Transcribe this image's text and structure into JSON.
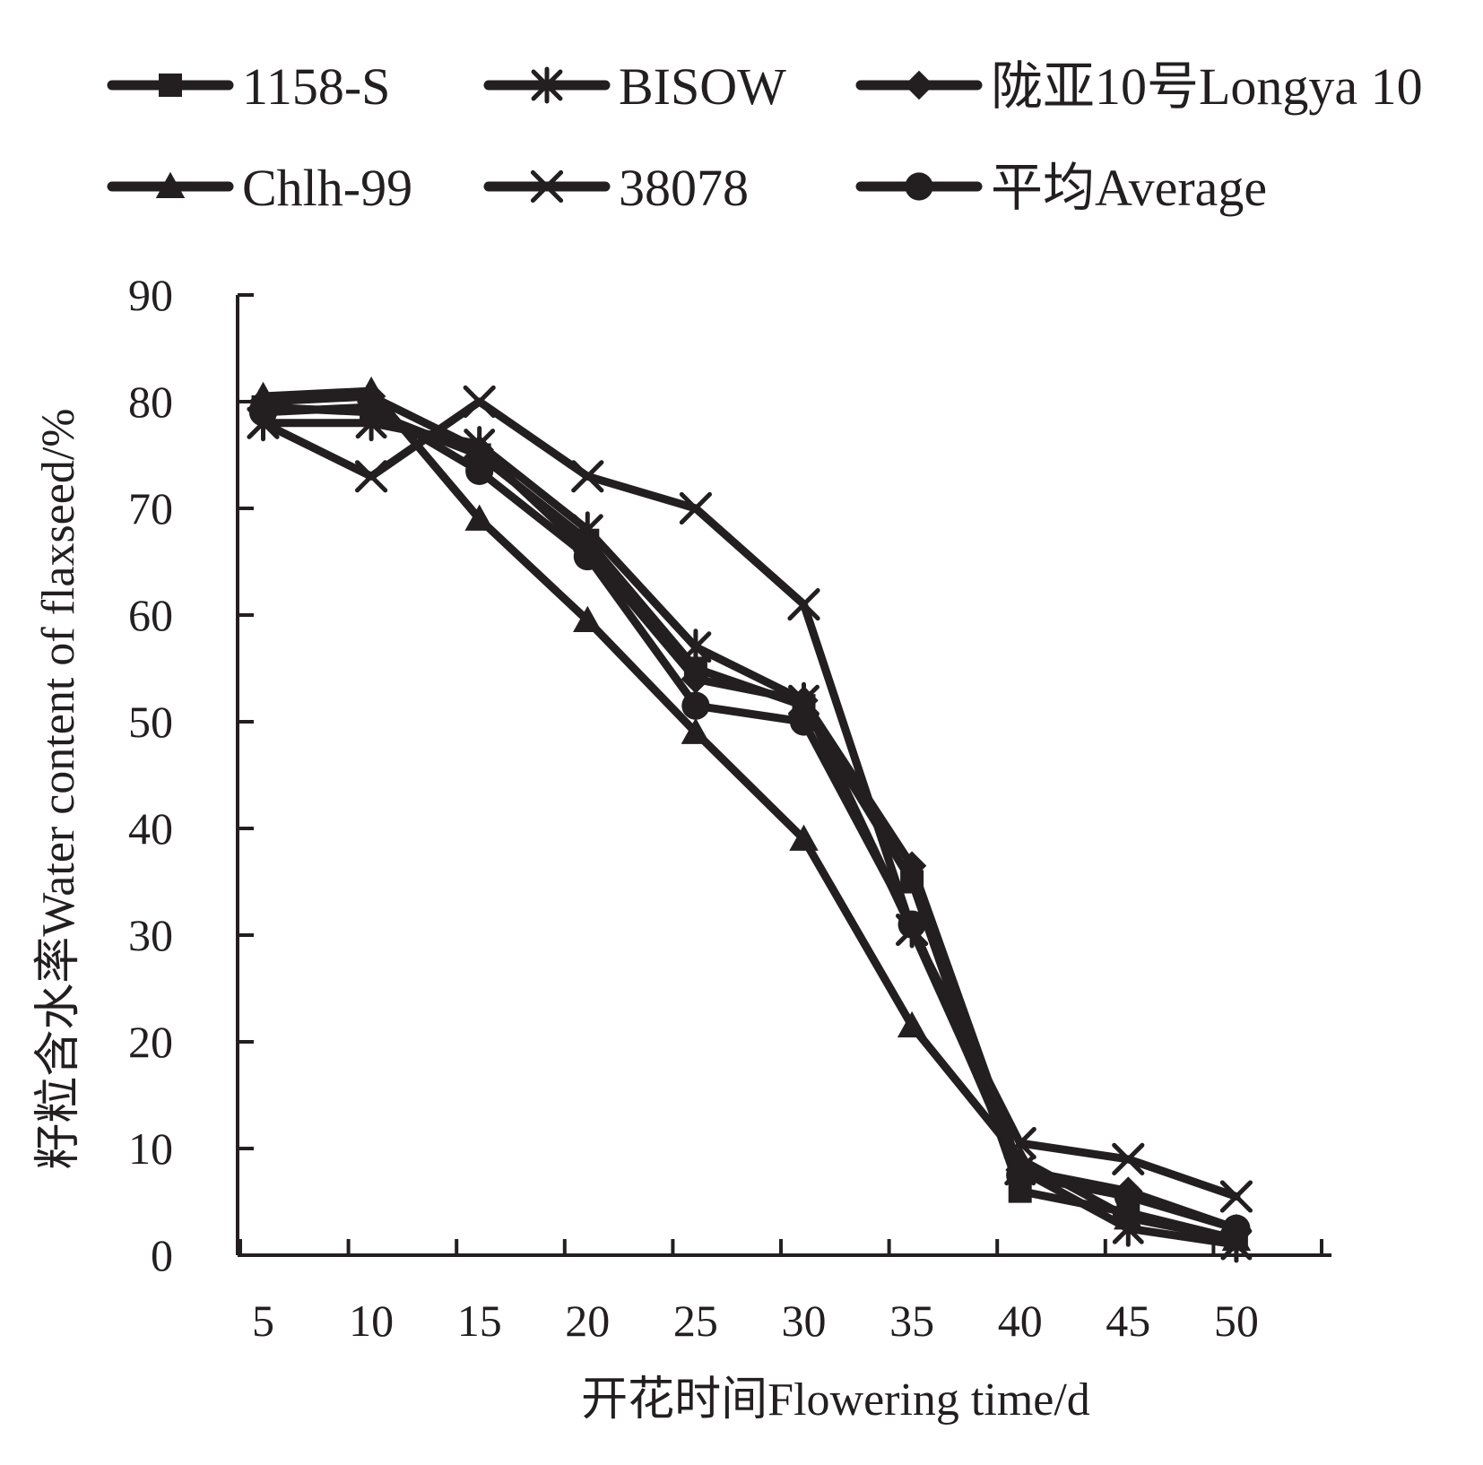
{
  "chart_data": {
    "type": "line",
    "xlabel": "开花时间Flowering time/d",
    "ylabel": "籽粒含水率Water content of flaxseed/%",
    "x": [
      5,
      10,
      15,
      20,
      25,
      30,
      35,
      40,
      45,
      50
    ],
    "ylim": [
      0,
      90
    ],
    "yticks": [
      0,
      10,
      20,
      30,
      40,
      50,
      60,
      70,
      80,
      90
    ],
    "legend_position": "top",
    "colors": {
      "line": "#231f20",
      "axis": "#231f20"
    },
    "series": [
      {
        "name": "1158-S",
        "marker": "square",
        "values": [
          79.5,
          79.0,
          75.0,
          67.0,
          55.0,
          51.5,
          35.0,
          6.0,
          4.0,
          1.5
        ]
      },
      {
        "name": "BISOW",
        "marker": "asterisk",
        "values": [
          78.0,
          78.0,
          76.0,
          68.0,
          57.0,
          52.0,
          30.5,
          8.0,
          2.5,
          1.0
        ]
      },
      {
        "name": "陇亚10号Longya 10",
        "marker": "diamond",
        "values": [
          80.0,
          80.5,
          75.5,
          66.0,
          54.0,
          52.0,
          36.5,
          8.0,
          6.0,
          2.5
        ]
      },
      {
        "name": "Chlh-99",
        "marker": "triangle",
        "values": [
          80.5,
          81.0,
          69.0,
          59.5,
          49.0,
          39.0,
          21.5,
          9.0,
          3.5,
          1.5
        ]
      },
      {
        "name": "38078",
        "marker": "x",
        "values": [
          78.0,
          73.0,
          80.0,
          73.0,
          70.0,
          61.0,
          30.5,
          10.5,
          9.0,
          5.5
        ]
      },
      {
        "name": "平均Average",
        "marker": "circle",
        "values": [
          79.0,
          79.5,
          73.5,
          65.5,
          51.5,
          50.0,
          31.0,
          7.5,
          5.5,
          2.5
        ]
      }
    ]
  }
}
